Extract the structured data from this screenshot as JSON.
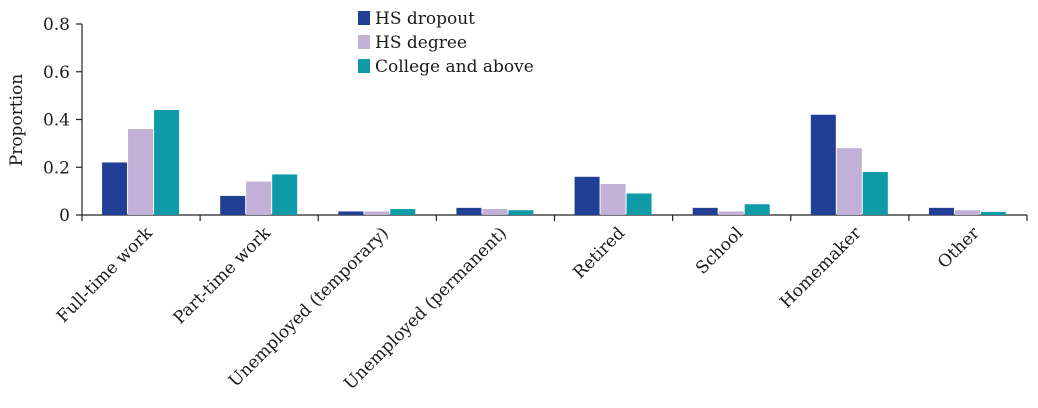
{
  "chart_data": {
    "type": "bar",
    "title": "",
    "xlabel": "",
    "ylabel": "Proportion",
    "ylim": [
      0,
      0.8
    ],
    "yticks": [
      "0",
      "0.2",
      "0.4",
      "0.6",
      "0.8"
    ],
    "grid": false,
    "legend_position": "top-center",
    "categories": [
      "Full-time work",
      "Part-time work",
      "Unemployed (temporary)",
      "Unemployed (permanent)",
      "Retired",
      "School",
      "Homemaker",
      "Other"
    ],
    "series": [
      {
        "name": "HS dropout",
        "color": "#213f94",
        "values": [
          0.22,
          0.08,
          0.015,
          0.03,
          0.16,
          0.03,
          0.42,
          0.03
        ]
      },
      {
        "name": "HS degree",
        "color": "#c3b0d6",
        "values": [
          0.36,
          0.14,
          0.015,
          0.025,
          0.13,
          0.015,
          0.28,
          0.02
        ]
      },
      {
        "name": "College and above",
        "color": "#0f9aa8",
        "values": [
          0.44,
          0.17,
          0.025,
          0.02,
          0.09,
          0.045,
          0.18,
          0.013
        ]
      }
    ]
  }
}
